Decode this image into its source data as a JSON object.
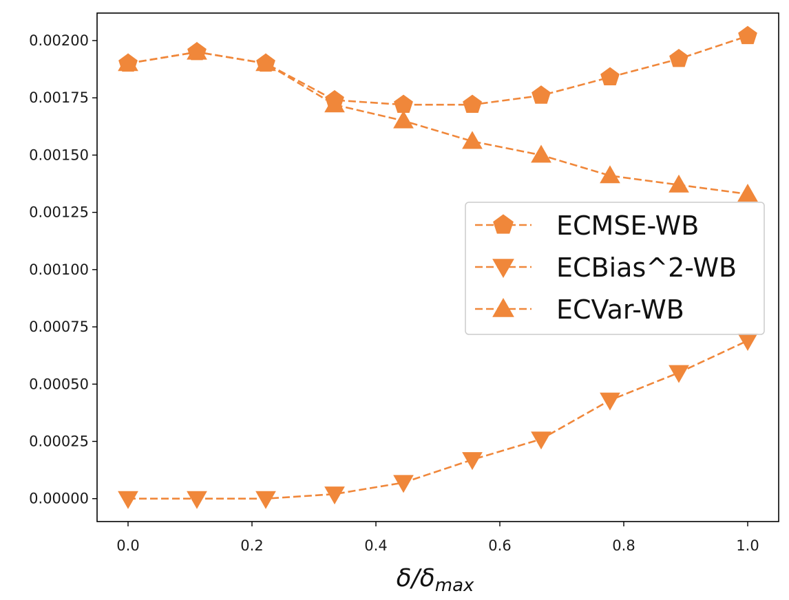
{
  "chart_data": {
    "type": "line",
    "title": "",
    "xlabel": "δ/δmax",
    "xlabel_main": "δ/δ",
    "xlabel_sub": "max",
    "ylabel": "",
    "xlim": [
      -0.05,
      1.05
    ],
    "ylim": [
      -0.0001,
      0.00212
    ],
    "xticks": [
      0.0,
      0.2,
      0.4,
      0.6,
      0.8,
      1.0
    ],
    "xtick_labels": [
      "0.0",
      "0.2",
      "0.4",
      "0.6",
      "0.8",
      "1.0"
    ],
    "yticks": [
      0.0,
      0.00025,
      0.0005,
      0.00075,
      0.001,
      0.00125,
      0.0015,
      0.00175,
      0.002
    ],
    "ytick_labels": [
      "0.00000",
      "0.00025",
      "0.00050",
      "0.00075",
      "0.00100",
      "0.00125",
      "0.00150",
      "0.00175",
      "0.00200"
    ],
    "grid": false,
    "legend_position": "center-right",
    "x": [
      0.0,
      0.1111,
      0.2222,
      0.3333,
      0.4444,
      0.5556,
      0.6667,
      0.7778,
      0.8889,
      1.0
    ],
    "series": [
      {
        "name": "ECMSE-WB",
        "marker": "pentagon",
        "color": "#f0873a",
        "linestyle": "dashed",
        "values": [
          0.0019,
          0.00195,
          0.0019,
          0.00174,
          0.00172,
          0.00172,
          0.00176,
          0.00184,
          0.00192,
          0.00202
        ]
      },
      {
        "name": "ECBias^2-WB",
        "marker": "triangle-down",
        "color": "#f0873a",
        "linestyle": "dashed",
        "values": [
          0.0,
          0.0,
          0.0,
          2e-05,
          7e-05,
          0.00017,
          0.00026,
          0.00043,
          0.00055,
          0.00069
        ]
      },
      {
        "name": "ECVar-WB",
        "marker": "triangle-up",
        "color": "#f0873a",
        "linestyle": "dashed",
        "values": [
          0.0019,
          0.00195,
          0.0019,
          0.00172,
          0.00165,
          0.00156,
          0.0015,
          0.00141,
          0.00137,
          0.00133
        ]
      }
    ]
  }
}
